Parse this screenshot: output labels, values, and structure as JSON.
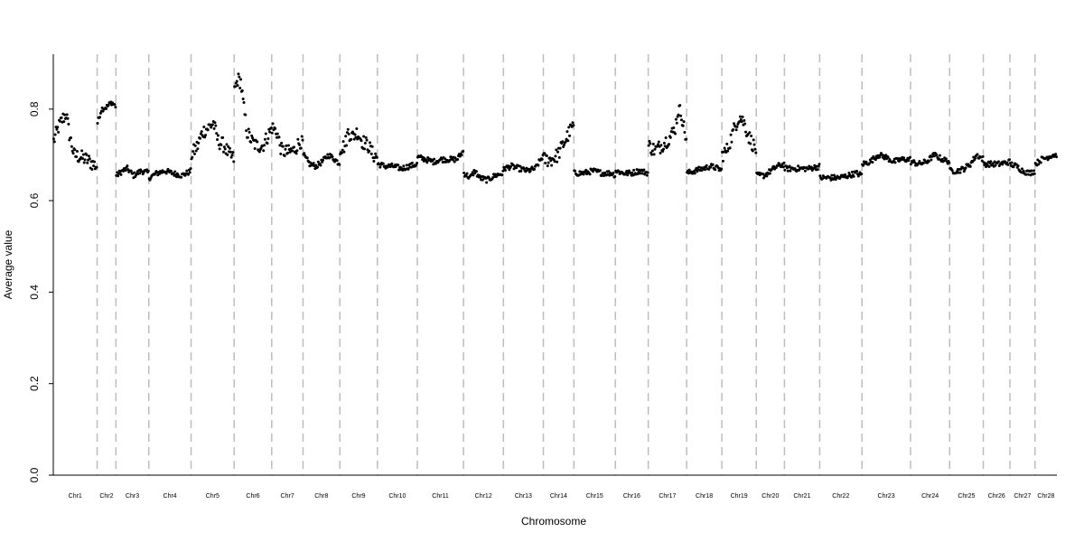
{
  "chart_data": {
    "type": "scatter",
    "title": "",
    "xlabel": "Chromosome",
    "ylabel": "Average value",
    "ylim": [
      0,
      0.92
    ],
    "yticks": [
      0.0,
      0.2,
      0.4,
      0.6,
      0.8
    ],
    "ytick_labels": [
      "0.0",
      "0.2",
      "0.4",
      "0.6",
      "0.8"
    ],
    "grid": false,
    "legend": "none",
    "x_unit": "window index",
    "point_color": "#000000",
    "boundary_color": "#bdbdbd",
    "chromosomes": [
      {
        "name": "Chr1",
        "start": 0,
        "end": 56,
        "profile": [
          [
            0,
            0.73
          ],
          [
            6,
            0.76
          ],
          [
            12,
            0.78
          ],
          [
            16,
            0.79
          ],
          [
            20,
            0.745
          ],
          [
            26,
            0.7
          ],
          [
            34,
            0.695
          ],
          [
            42,
            0.69
          ],
          [
            50,
            0.68
          ],
          [
            56,
            0.675
          ]
        ]
      },
      {
        "name": "Chr2",
        "start": 56,
        "end": 80,
        "profile": [
          [
            0,
            0.77
          ],
          [
            5,
            0.8
          ],
          [
            12,
            0.805
          ],
          [
            18,
            0.815
          ],
          [
            24,
            0.805
          ]
        ]
      },
      {
        "name": "Chr3",
        "start": 80,
        "end": 122,
        "profile": [
          [
            0,
            0.655
          ],
          [
            8,
            0.665
          ],
          [
            14,
            0.67
          ],
          [
            22,
            0.655
          ],
          [
            32,
            0.665
          ],
          [
            42,
            0.66
          ]
        ]
      },
      {
        "name": "Chr4",
        "start": 122,
        "end": 176,
        "profile": [
          [
            0,
            0.65
          ],
          [
            10,
            0.66
          ],
          [
            20,
            0.665
          ],
          [
            30,
            0.66
          ],
          [
            42,
            0.655
          ],
          [
            54,
            0.665
          ]
        ]
      },
      {
        "name": "Chr5",
        "start": 176,
        "end": 231,
        "profile": [
          [
            0,
            0.7
          ],
          [
            8,
            0.72
          ],
          [
            14,
            0.75
          ],
          [
            22,
            0.76
          ],
          [
            28,
            0.77
          ],
          [
            34,
            0.73
          ],
          [
            42,
            0.72
          ],
          [
            48,
            0.7
          ],
          [
            55,
            0.69
          ]
        ]
      },
      {
        "name": "Chr6",
        "start": 231,
        "end": 279,
        "profile": [
          [
            0,
            0.84
          ],
          [
            4,
            0.865
          ],
          [
            8,
            0.86
          ],
          [
            12,
            0.8
          ],
          [
            16,
            0.75
          ],
          [
            22,
            0.73
          ],
          [
            28,
            0.72
          ],
          [
            36,
            0.72
          ],
          [
            42,
            0.74
          ],
          [
            48,
            0.76
          ]
        ]
      },
      {
        "name": "Chr7",
        "start": 279,
        "end": 319,
        "profile": [
          [
            0,
            0.76
          ],
          [
            6,
            0.75
          ],
          [
            12,
            0.71
          ],
          [
            20,
            0.705
          ],
          [
            28,
            0.71
          ],
          [
            36,
            0.73
          ],
          [
            40,
            0.72
          ]
        ]
      },
      {
        "name": "Chr8",
        "start": 319,
        "end": 366,
        "profile": [
          [
            0,
            0.7
          ],
          [
            8,
            0.68
          ],
          [
            16,
            0.675
          ],
          [
            24,
            0.685
          ],
          [
            32,
            0.7
          ],
          [
            40,
            0.69
          ],
          [
            47,
            0.68
          ]
        ]
      },
      {
        "name": "Chr9",
        "start": 366,
        "end": 414,
        "profile": [
          [
            0,
            0.715
          ],
          [
            6,
            0.72
          ],
          [
            10,
            0.75
          ],
          [
            16,
            0.74
          ],
          [
            22,
            0.75
          ],
          [
            28,
            0.73
          ],
          [
            36,
            0.72
          ],
          [
            42,
            0.7
          ],
          [
            48,
            0.695
          ]
        ]
      },
      {
        "name": "Chr10",
        "start": 414,
        "end": 465,
        "profile": [
          [
            0,
            0.68
          ],
          [
            10,
            0.675
          ],
          [
            20,
            0.675
          ],
          [
            30,
            0.67
          ],
          [
            40,
            0.675
          ],
          [
            51,
            0.68
          ]
        ]
      },
      {
        "name": "Chr11",
        "start": 465,
        "end": 524,
        "profile": [
          [
            0,
            0.695
          ],
          [
            10,
            0.69
          ],
          [
            20,
            0.685
          ],
          [
            30,
            0.69
          ],
          [
            40,
            0.69
          ],
          [
            50,
            0.69
          ],
          [
            59,
            0.71
          ]
        ]
      },
      {
        "name": "Chr12",
        "start": 524,
        "end": 575,
        "profile": [
          [
            0,
            0.66
          ],
          [
            8,
            0.65
          ],
          [
            14,
            0.665
          ],
          [
            20,
            0.65
          ],
          [
            30,
            0.645
          ],
          [
            40,
            0.655
          ],
          [
            51,
            0.66
          ]
        ]
      },
      {
        "name": "Chr13",
        "start": 575,
        "end": 626,
        "profile": [
          [
            0,
            0.67
          ],
          [
            10,
            0.675
          ],
          [
            20,
            0.67
          ],
          [
            30,
            0.665
          ],
          [
            40,
            0.67
          ],
          [
            51,
            0.7
          ]
        ]
      },
      {
        "name": "Chr14",
        "start": 626,
        "end": 665,
        "profile": [
          [
            0,
            0.69
          ],
          [
            10,
            0.69
          ],
          [
            18,
            0.7
          ],
          [
            24,
            0.72
          ],
          [
            30,
            0.74
          ],
          [
            36,
            0.76
          ],
          [
            39,
            0.765
          ]
        ]
      },
      {
        "name": "Chr15",
        "start": 665,
        "end": 718,
        "profile": [
          [
            0,
            0.66
          ],
          [
            12,
            0.66
          ],
          [
            24,
            0.665
          ],
          [
            36,
            0.66
          ],
          [
            48,
            0.66
          ],
          [
            53,
            0.655
          ]
        ]
      },
      {
        "name": "Chr16",
        "start": 718,
        "end": 760,
        "profile": [
          [
            0,
            0.665
          ],
          [
            10,
            0.66
          ],
          [
            20,
            0.66
          ],
          [
            30,
            0.665
          ],
          [
            42,
            0.66
          ]
        ]
      },
      {
        "name": "Chr17",
        "start": 760,
        "end": 809,
        "profile": [
          [
            0,
            0.72
          ],
          [
            8,
            0.71
          ],
          [
            16,
            0.72
          ],
          [
            22,
            0.73
          ],
          [
            28,
            0.74
          ],
          [
            34,
            0.76
          ],
          [
            38,
            0.8
          ],
          [
            42,
            0.79
          ],
          [
            46,
            0.75
          ],
          [
            49,
            0.73
          ]
        ]
      },
      {
        "name": "Chr18",
        "start": 809,
        "end": 854,
        "profile": [
          [
            0,
            0.66
          ],
          [
            10,
            0.665
          ],
          [
            20,
            0.67
          ],
          [
            30,
            0.675
          ],
          [
            40,
            0.67
          ],
          [
            45,
            0.665
          ]
        ]
      },
      {
        "name": "Chr19",
        "start": 854,
        "end": 898,
        "profile": [
          [
            0,
            0.7
          ],
          [
            6,
            0.71
          ],
          [
            12,
            0.74
          ],
          [
            18,
            0.77
          ],
          [
            22,
            0.785
          ],
          [
            28,
            0.77
          ],
          [
            34,
            0.74
          ],
          [
            40,
            0.72
          ],
          [
            44,
            0.71
          ]
        ]
      },
      {
        "name": "Chr20",
        "start": 898,
        "end": 934,
        "profile": [
          [
            0,
            0.655
          ],
          [
            10,
            0.655
          ],
          [
            18,
            0.665
          ],
          [
            26,
            0.675
          ],
          [
            36,
            0.68
          ]
        ]
      },
      {
        "name": "Chr21",
        "start": 934,
        "end": 979,
        "profile": [
          [
            0,
            0.67
          ],
          [
            10,
            0.67
          ],
          [
            20,
            0.67
          ],
          [
            30,
            0.67
          ],
          [
            45,
            0.675
          ]
        ]
      },
      {
        "name": "Chr22",
        "start": 979,
        "end": 1033,
        "profile": [
          [
            0,
            0.65
          ],
          [
            12,
            0.65
          ],
          [
            24,
            0.65
          ],
          [
            36,
            0.655
          ],
          [
            46,
            0.66
          ],
          [
            54,
            0.655
          ]
        ]
      },
      {
        "name": "Chr23",
        "start": 1033,
        "end": 1095,
        "profile": [
          [
            0,
            0.68
          ],
          [
            10,
            0.685
          ],
          [
            20,
            0.7
          ],
          [
            30,
            0.695
          ],
          [
            40,
            0.685
          ],
          [
            50,
            0.69
          ],
          [
            62,
            0.69
          ]
        ]
      },
      {
        "name": "Chr24",
        "start": 1095,
        "end": 1145,
        "profile": [
          [
            0,
            0.685
          ],
          [
            10,
            0.68
          ],
          [
            20,
            0.685
          ],
          [
            30,
            0.7
          ],
          [
            40,
            0.69
          ],
          [
            50,
            0.685
          ]
        ]
      },
      {
        "name": "Chr25",
        "start": 1145,
        "end": 1188,
        "profile": [
          [
            0,
            0.665
          ],
          [
            10,
            0.665
          ],
          [
            18,
            0.67
          ],
          [
            26,
            0.68
          ],
          [
            34,
            0.7
          ],
          [
            43,
            0.69
          ]
        ]
      },
      {
        "name": "Chr26",
        "start": 1188,
        "end": 1222,
        "profile": [
          [
            0,
            0.68
          ],
          [
            10,
            0.68
          ],
          [
            20,
            0.68
          ],
          [
            34,
            0.685
          ]
        ]
      },
      {
        "name": "Chr27",
        "start": 1222,
        "end": 1254,
        "profile": [
          [
            0,
            0.68
          ],
          [
            8,
            0.675
          ],
          [
            16,
            0.665
          ],
          [
            24,
            0.66
          ],
          [
            32,
            0.665
          ]
        ]
      },
      {
        "name": "Chr28",
        "start": 1254,
        "end": 1282,
        "profile": [
          [
            0,
            0.68
          ],
          [
            8,
            0.69
          ],
          [
            16,
            0.695
          ],
          [
            22,
            0.7
          ],
          [
            28,
            0.7
          ]
        ]
      }
    ]
  }
}
